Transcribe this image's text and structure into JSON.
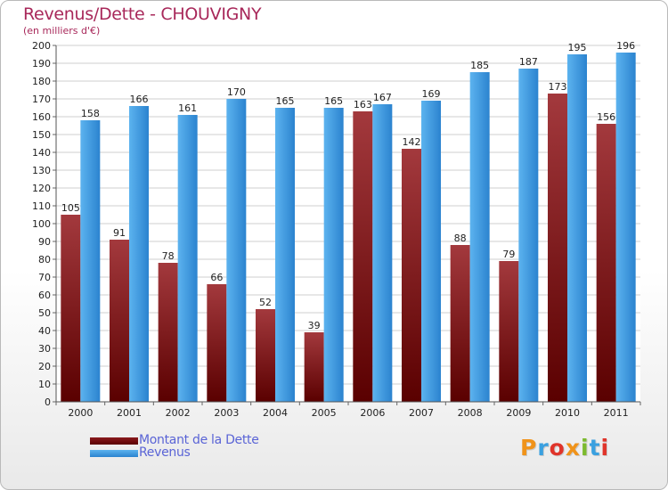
{
  "title": "Revenus/Dette - CHOUVIGNY",
  "subtitle": "(en milliers d'€)",
  "logo_text": "Proxiti",
  "colors": {
    "debt": "#7a1216",
    "revenue": "#3f9fe5",
    "title": "#a8285a",
    "legend_text": "#5a64d6"
  },
  "chart_data": {
    "type": "bar",
    "categories": [
      "2000",
      "2001",
      "2002",
      "2003",
      "2004",
      "2005",
      "2006",
      "2007",
      "2008",
      "2009",
      "2010",
      "2011"
    ],
    "series": [
      {
        "name": "Montant de la Dette",
        "values": [
          105,
          91,
          78,
          66,
          52,
          39,
          163,
          142,
          88,
          79,
          173,
          156
        ]
      },
      {
        "name": "Revenus",
        "values": [
          158,
          166,
          161,
          170,
          165,
          165,
          167,
          169,
          185,
          187,
          195,
          196
        ]
      }
    ],
    "ylim": [
      0,
      200
    ],
    "ytick_step": 10,
    "grid": true,
    "legend": "bottom-left"
  }
}
